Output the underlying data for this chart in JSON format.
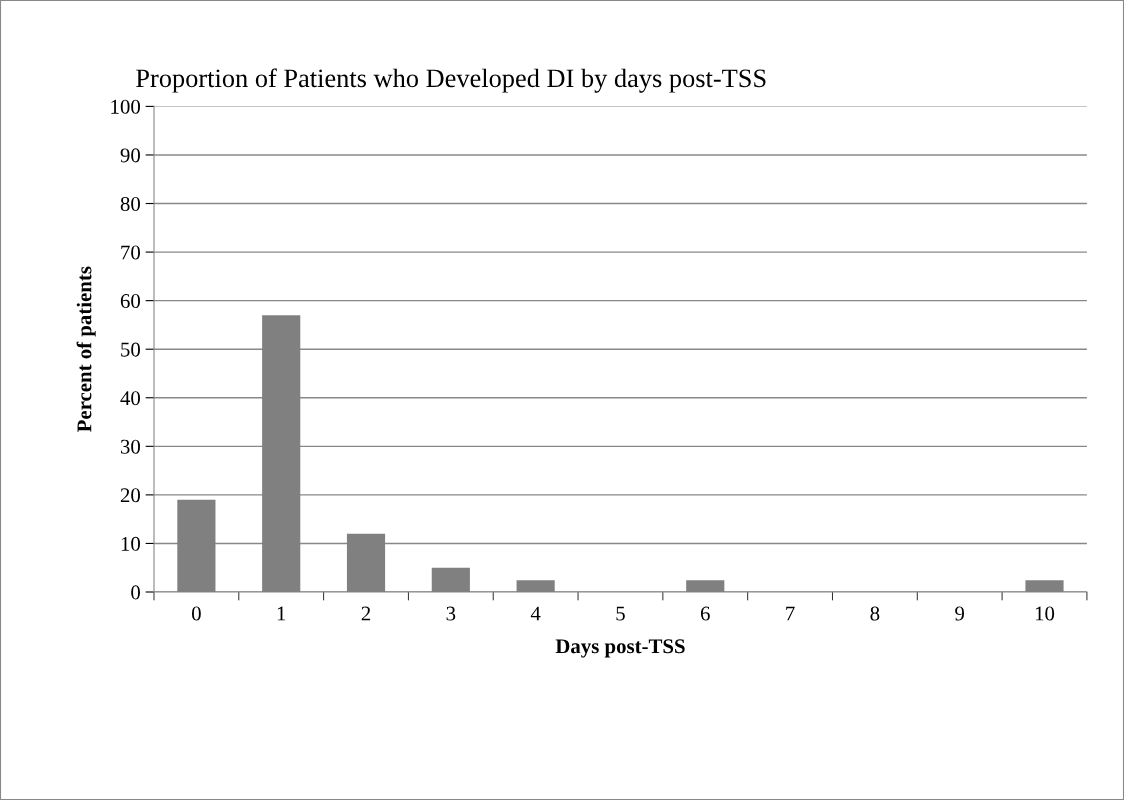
{
  "chart_data": {
    "type": "bar",
    "title": "Proportion of Patients who Developed DI by days post-TSS",
    "xlabel": "Days post-TSS",
    "ylabel": "Percent of patients",
    "categories": [
      "0",
      "1",
      "2",
      "3",
      "4",
      "5",
      "6",
      "7",
      "8",
      "9",
      "10"
    ],
    "values": [
      19,
      57,
      12,
      5,
      2.4,
      0,
      2.4,
      0,
      0,
      0,
      2.4
    ],
    "color": "#808080",
    "ylim": [
      0,
      100
    ],
    "yticks": [
      0,
      10,
      20,
      30,
      40,
      50,
      60,
      70,
      80,
      90,
      100
    ],
    "grid": "y"
  }
}
